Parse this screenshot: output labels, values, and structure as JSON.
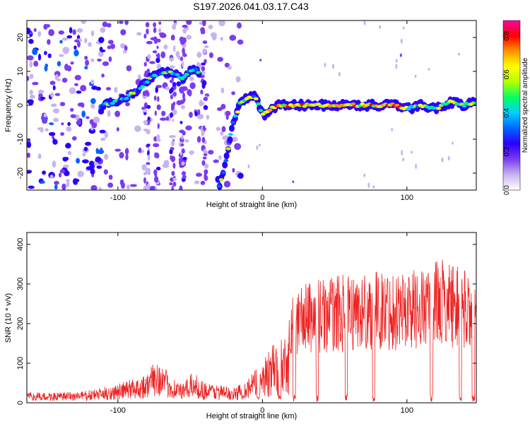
{
  "title": "S197.2026.041.03.17.C43",
  "chart_data": [
    {
      "type": "heatmap",
      "name": "spectrogram",
      "xlabel": "Height of straight line (km)",
      "ylabel": "Frequency (Hz)",
      "xlim": [
        -163,
        148
      ],
      "ylim": [
        -25,
        25
      ],
      "xticks": [
        -100,
        0,
        100
      ],
      "yticks": [
        -20,
        -10,
        0,
        10,
        20
      ],
      "colorbar": {
        "label": "Normalized spectral amplitude",
        "range": [
          0,
          0.88
        ],
        "ticks": [
          0,
          0.2,
          0.4,
          0.6,
          0.8
        ],
        "colors": [
          "#ffffff",
          "#c8b4f0",
          "#7c3cf0",
          "#2a00ff",
          "#0064ff",
          "#00d0ff",
          "#00ff64",
          "#b4ff00",
          "#ffff00",
          "#ff9600",
          "#ff0000",
          "#ff00a0"
        ]
      },
      "ridge": [
        {
          "x": -110,
          "y": 0
        },
        {
          "x": -95,
          "y": 2
        },
        {
          "x": -85,
          "y": 5
        },
        {
          "x": -75,
          "y": 9
        },
        {
          "x": -65,
          "y": 10
        },
        {
          "x": -55,
          "y": 8
        },
        {
          "x": -50,
          "y": 10
        },
        {
          "x": -45,
          "y": 11
        },
        {
          "x": -30,
          "y": -24
        },
        {
          "x": -27,
          "y": -20
        },
        {
          "x": -24,
          "y": -14
        },
        {
          "x": -21,
          "y": -6
        },
        {
          "x": -15,
          "y": 1
        },
        {
          "x": -10,
          "y": 2
        },
        {
          "x": -5,
          "y": 3
        },
        {
          "x": 0,
          "y": -3
        },
        {
          "x": 10,
          "y": 0
        },
        {
          "x": 20,
          "y": 0
        },
        {
          "x": 30,
          "y": 0
        },
        {
          "x": 40,
          "y": 0
        },
        {
          "x": 50,
          "y": 0
        },
        {
          "x": 60,
          "y": 0
        },
        {
          "x": 70,
          "y": 0
        },
        {
          "x": 80,
          "y": 0
        },
        {
          "x": 90,
          "y": 0
        },
        {
          "x": 100,
          "y": -1
        },
        {
          "x": 110,
          "y": 0
        },
        {
          "x": 120,
          "y": -1
        },
        {
          "x": 130,
          "y": 1
        },
        {
          "x": 140,
          "y": 0
        },
        {
          "x": 147,
          "y": 1
        }
      ]
    },
    {
      "type": "line",
      "name": "snr",
      "xlabel": "Height of straight line (km)",
      "ylabel": "SNR (10 * v/v)",
      "xlim": [
        -163,
        148
      ],
      "ylim": [
        0,
        430
      ],
      "xticks": [
        -100,
        0,
        100
      ],
      "yticks": [
        0,
        100,
        200,
        300,
        400
      ],
      "color": "#ee2222",
      "envelope": [
        {
          "x": -163,
          "y": 25
        },
        {
          "x": -140,
          "y": 25
        },
        {
          "x": -120,
          "y": 30
        },
        {
          "x": -100,
          "y": 45
        },
        {
          "x": -90,
          "y": 60
        },
        {
          "x": -80,
          "y": 70
        },
        {
          "x": -73,
          "y": 110
        },
        {
          "x": -65,
          "y": 70
        },
        {
          "x": -55,
          "y": 45
        },
        {
          "x": -48,
          "y": 75
        },
        {
          "x": -40,
          "y": 50
        },
        {
          "x": -30,
          "y": 45
        },
        {
          "x": -20,
          "y": 35
        },
        {
          "x": -10,
          "y": 60
        },
        {
          "x": 0,
          "y": 100
        },
        {
          "x": 8,
          "y": 130
        },
        {
          "x": 15,
          "y": 160
        },
        {
          "x": 20,
          "y": 200
        },
        {
          "x": 30,
          "y": 220
        },
        {
          "x": 50,
          "y": 230
        },
        {
          "x": 70,
          "y": 235
        },
        {
          "x": 90,
          "y": 240
        },
        {
          "x": 110,
          "y": 245
        },
        {
          "x": 125,
          "y": 260
        },
        {
          "x": 135,
          "y": 250
        },
        {
          "x": 148,
          "y": 230
        }
      ],
      "dips": [
        -3,
        12,
        22,
        38,
        58,
        77,
        117,
        137,
        146
      ]
    }
  ]
}
